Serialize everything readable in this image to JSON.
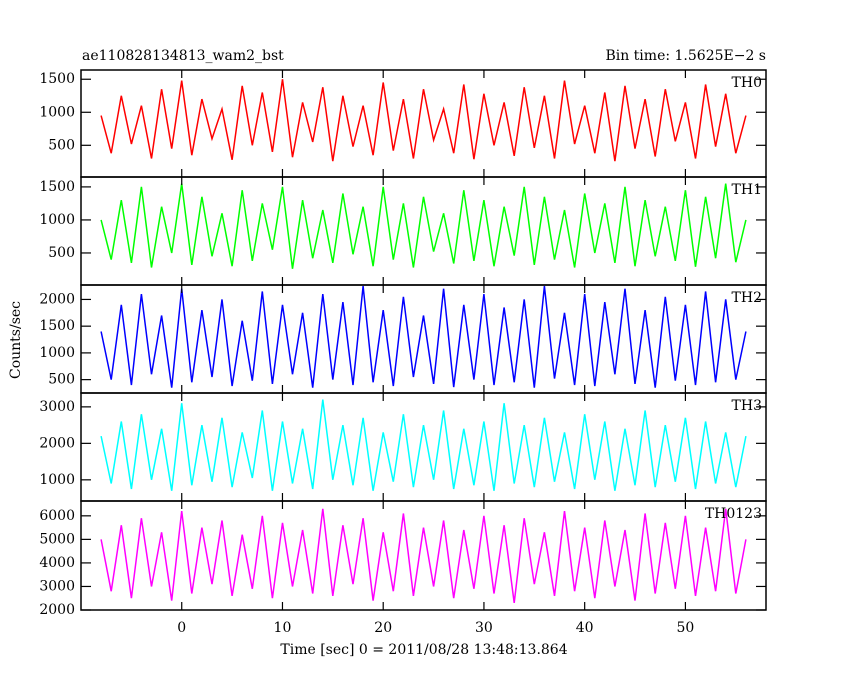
{
  "chart_data": {
    "type": "line",
    "title": "ae110828134813_wam2_bst",
    "subtitle": "Bin time: 1.5625E−2 s",
    "x_label": "Time [sec] 0 = 2011/08/28 13:48:13.864",
    "y_label": "Counts/sec",
    "xlim": [
      -10,
      58
    ],
    "xticks": [
      0,
      10,
      20,
      30,
      40,
      50
    ],
    "x": [
      -8,
      -7,
      -6,
      -5,
      -4,
      -3,
      -2,
      -1,
      0,
      1,
      2,
      3,
      4,
      5,
      6,
      7,
      8,
      9,
      10,
      11,
      12,
      13,
      14,
      15,
      16,
      17,
      18,
      19,
      20,
      21,
      22,
      23,
      24,
      25,
      26,
      27,
      28,
      29,
      30,
      31,
      32,
      33,
      34,
      35,
      36,
      37,
      38,
      39,
      40,
      41,
      42,
      43,
      44,
      45,
      46,
      47,
      48,
      49,
      50,
      51,
      52,
      53,
      54,
      55,
      56
    ],
    "panels": [
      {
        "name": "TH0",
        "color": "#ff0000",
        "ylim": [
          20,
          1640
        ],
        "yticks": [
          500,
          1000,
          1500
        ],
        "values": [
          950,
          380,
          1250,
          520,
          1100,
          300,
          1350,
          450,
          1480,
          350,
          1200,
          600,
          1050,
          280,
          1400,
          500,
          1300,
          400,
          1500,
          320,
          1150,
          550,
          1380,
          260,
          1250,
          480,
          1100,
          350,
          1450,
          420,
          1200,
          300,
          1350,
          580,
          1050,
          380,
          1420,
          290,
          1280,
          500,
          1150,
          340,
          1380,
          460,
          1250,
          300,
          1480,
          520,
          1100,
          380,
          1300,
          260,
          1400,
          450,
          1200,
          330,
          1350,
          560,
          1150,
          300,
          1420,
          480,
          1280,
          380,
          950
        ]
      },
      {
        "name": "TH1",
        "color": "#00ff00",
        "ylim": [
          15,
          1650
        ],
        "yticks": [
          500,
          1000,
          1500
        ],
        "values": [
          1000,
          400,
          1300,
          350,
          1500,
          280,
          1200,
          500,
          1550,
          320,
          1350,
          450,
          1100,
          300,
          1450,
          380,
          1250,
          550,
          1500,
          260,
          1300,
          420,
          1150,
          350,
          1400,
          480,
          1200,
          300,
          1500,
          400,
          1250,
          280,
          1350,
          520,
          1100,
          340,
          1450,
          380,
          1300,
          300,
          1200,
          460,
          1500,
          320,
          1350,
          400,
          1150,
          280,
          1400,
          500,
          1250,
          350,
          1500,
          300,
          1300,
          450,
          1200,
          380,
          1450,
          290,
          1350,
          420,
          1550,
          360,
          1000
        ]
      },
      {
        "name": "TH2",
        "color": "#0000ff",
        "ylim": [
          250,
          2270
        ],
        "yticks": [
          500,
          1000,
          1500,
          2000
        ],
        "values": [
          1400,
          500,
          1900,
          400,
          2100,
          600,
          1700,
          350,
          2200,
          450,
          1800,
          550,
          2000,
          380,
          1600,
          480,
          2150,
          420,
          1900,
          600,
          1750,
          350,
          2100,
          500,
          1950,
          400,
          2250,
          450,
          1800,
          380,
          2050,
          550,
          1700,
          420,
          2200,
          360,
          1900,
          500,
          2100,
          400,
          1850,
          450,
          2000,
          350,
          2250,
          520,
          1750,
          400,
          2100,
          380,
          1950,
          600,
          2200,
          420,
          1800,
          350,
          2050,
          480,
          1900,
          400,
          2150,
          450,
          2000,
          500,
          1400
        ]
      },
      {
        "name": "TH3",
        "color": "#00ffff",
        "ylim": [
          420,
          3380
        ],
        "yticks": [
          1000,
          2000,
          3000
        ],
        "values": [
          2200,
          900,
          2600,
          750,
          2800,
          1000,
          2400,
          700,
          3100,
          850,
          2500,
          950,
          2700,
          800,
          2300,
          1050,
          2900,
          700,
          2600,
          900,
          2400,
          750,
          3200,
          1000,
          2500,
          850,
          2700,
          700,
          2300,
          950,
          2800,
          800,
          2500,
          1000,
          2900,
          750,
          2400,
          850,
          2600,
          700,
          3100,
          900,
          2500,
          800,
          2700,
          950,
          2300,
          750,
          2800,
          1000,
          2600,
          700,
          2400,
          850,
          2900,
          800,
          2500,
          950,
          2700,
          750,
          2600,
          900,
          2300,
          800,
          2200
        ]
      },
      {
        "name": "TH0123",
        "color": "#ff00ff",
        "ylim": [
          2000,
          6630
        ],
        "yticks": [
          2000,
          3000,
          4000,
          5000,
          6000
        ],
        "values": [
          5000,
          2800,
          5600,
          2500,
          5900,
          3000,
          5300,
          2400,
          6200,
          2700,
          5500,
          3100,
          5800,
          2600,
          5200,
          2900,
          6000,
          2500,
          5700,
          3000,
          5400,
          2700,
          6300,
          2600,
          5600,
          3100,
          5900,
          2400,
          5300,
          2800,
          6100,
          2600,
          5500,
          3000,
          5800,
          2500,
          5400,
          2900,
          6000,
          2700,
          5600,
          2300,
          5900,
          3100,
          5300,
          2600,
          6200,
          2800,
          5500,
          2500,
          5800,
          3000,
          5400,
          2400,
          6100,
          2700,
          5700,
          2900,
          6000,
          2600,
          5500,
          2800,
          6300,
          2700,
          5000
        ]
      }
    ]
  }
}
